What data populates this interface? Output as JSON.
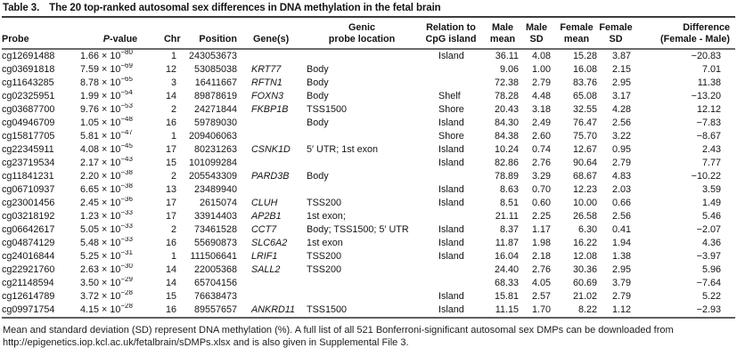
{
  "title": {
    "label": "Table 3.",
    "caption": "The 20 top-ranked autosomal sex differences in DNA methylation in the fetal brain"
  },
  "table": {
    "columns": [
      {
        "key": "probe",
        "label": "Probe"
      },
      {
        "key": "pvalue",
        "label": "P-value"
      },
      {
        "key": "chr",
        "label": "Chr"
      },
      {
        "key": "position",
        "label": "Position"
      },
      {
        "key": "gene",
        "label": "Gene(s)"
      },
      {
        "key": "genic",
        "label": "Genic\nprobe location"
      },
      {
        "key": "relation",
        "label": "Relation to\nCpG island"
      },
      {
        "key": "male_mean",
        "label": "Male\nmean"
      },
      {
        "key": "male_sd",
        "label": "Male\nSD"
      },
      {
        "key": "female_mean",
        "label": "Female\nmean"
      },
      {
        "key": "female_sd",
        "label": "Female\nSD"
      },
      {
        "key": "difference",
        "label": "Difference\n(Female - Male)"
      }
    ],
    "rows": [
      {
        "probe": "cg12691488",
        "p_mantissa": "1.66",
        "p_exponent": "−80",
        "chr": "1",
        "position": "243053673",
        "gene": "",
        "genic": "",
        "relation": "Island",
        "male_mean": "36.11",
        "male_sd": "4.08",
        "female_mean": "15.28",
        "female_sd": "3.87",
        "difference": "−20.83"
      },
      {
        "probe": "cg03691818",
        "p_mantissa": "7.59",
        "p_exponent": "−69",
        "chr": "12",
        "position": "53085038",
        "gene": "KRT77",
        "genic": "Body",
        "relation": "",
        "male_mean": "9.06",
        "male_sd": "1.00",
        "female_mean": "16.08",
        "female_sd": "2.15",
        "difference": "7.01"
      },
      {
        "probe": "cg11643285",
        "p_mantissa": "8.78",
        "p_exponent": "−65",
        "chr": "3",
        "position": "16411667",
        "gene": "RFTN1",
        "genic": "Body",
        "relation": "",
        "male_mean": "72.38",
        "male_sd": "2.79",
        "female_mean": "83.76",
        "female_sd": "2.95",
        "difference": "11.38"
      },
      {
        "probe": "cg02325951",
        "p_mantissa": "1.99",
        "p_exponent": "−54",
        "chr": "14",
        "position": "89878619",
        "gene": "FOXN3",
        "genic": "Body",
        "relation": "Shelf",
        "male_mean": "78.28",
        "male_sd": "4.48",
        "female_mean": "65.08",
        "female_sd": "3.17",
        "difference": "−13.20"
      },
      {
        "probe": "cg03687700",
        "p_mantissa": "9.76",
        "p_exponent": "−53",
        "chr": "2",
        "position": "24271844",
        "gene": "FKBP1B",
        "genic": "TSS1500",
        "relation": "Shore",
        "male_mean": "20.43",
        "male_sd": "3.18",
        "female_mean": "32.55",
        "female_sd": "4.28",
        "difference": "12.12"
      },
      {
        "probe": "cg04946709",
        "p_mantissa": "1.05",
        "p_exponent": "−48",
        "chr": "16",
        "position": "59789030",
        "gene": "",
        "genic": "Body",
        "relation": "Island",
        "male_mean": "84.30",
        "male_sd": "2.49",
        "female_mean": "76.47",
        "female_sd": "2.56",
        "difference": "−7.83"
      },
      {
        "probe": "cg15817705",
        "p_mantissa": "5.81",
        "p_exponent": "−47",
        "chr": "1",
        "position": "209406063",
        "gene": "",
        "genic": "",
        "relation": "Shore",
        "male_mean": "84.38",
        "male_sd": "2.60",
        "female_mean": "75.70",
        "female_sd": "3.22",
        "difference": "−8.67"
      },
      {
        "probe": "cg22345911",
        "p_mantissa": "4.08",
        "p_exponent": "−45",
        "chr": "17",
        "position": "80231263",
        "gene": "CSNK1D",
        "genic": "5′ UTR; 1st exon",
        "relation": "Island",
        "male_mean": "10.24",
        "male_sd": "0.74",
        "female_mean": "12.67",
        "female_sd": "0.95",
        "difference": "2.43"
      },
      {
        "probe": "cg23719534",
        "p_mantissa": "2.17",
        "p_exponent": "−43",
        "chr": "15",
        "position": "101099284",
        "gene": "",
        "genic": "",
        "relation": "Island",
        "male_mean": "82.86",
        "male_sd": "2.76",
        "female_mean": "90.64",
        "female_sd": "2.79",
        "difference": "7.77"
      },
      {
        "probe": "cg11841231",
        "p_mantissa": "2.20",
        "p_exponent": "−38",
        "chr": "2",
        "position": "205543309",
        "gene": "PARD3B",
        "genic": "Body",
        "relation": "",
        "male_mean": "78.89",
        "male_sd": "3.29",
        "female_mean": "68.67",
        "female_sd": "4.83",
        "difference": "−10.22"
      },
      {
        "probe": "cg06710937",
        "p_mantissa": "6.65",
        "p_exponent": "−38",
        "chr": "13",
        "position": "23489940",
        "gene": "",
        "genic": "",
        "relation": "Island",
        "male_mean": "8.63",
        "male_sd": "0.70",
        "female_mean": "12.23",
        "female_sd": "2.03",
        "difference": "3.59"
      },
      {
        "probe": "cg23001456",
        "p_mantissa": "2.45",
        "p_exponent": "−36",
        "chr": "17",
        "position": "2615074",
        "gene": "CLUH",
        "genic": "TSS200",
        "relation": "Island",
        "male_mean": "8.51",
        "male_sd": "0.60",
        "female_mean": "10.00",
        "female_sd": "0.66",
        "difference": "1.49"
      },
      {
        "probe": "cg03218192",
        "p_mantissa": "1.23",
        "p_exponent": "−33",
        "chr": "17",
        "position": "33914403",
        "gene": "AP2B1",
        "genic": "1st exon;",
        "relation": "",
        "male_mean": "21.11",
        "male_sd": "2.25",
        "female_mean": "26.58",
        "female_sd": "2.56",
        "difference": "5.46"
      },
      {
        "probe": "cg06642617",
        "p_mantissa": "5.05",
        "p_exponent": "−33",
        "chr": "2",
        "position": "73461528",
        "gene": "CCT7",
        "genic": "Body; TSS1500; 5′ UTR",
        "relation": "Island",
        "male_mean": "8.37",
        "male_sd": "1.17",
        "female_mean": "6.30",
        "female_sd": "0.41",
        "difference": "−2.07"
      },
      {
        "probe": "cg04874129",
        "p_mantissa": "5.48",
        "p_exponent": "−33",
        "chr": "16",
        "position": "55690873",
        "gene": "SLC6A2",
        "genic": "1st exon",
        "relation": "Island",
        "male_mean": "11.87",
        "male_sd": "1.98",
        "female_mean": "16.22",
        "female_sd": "1.94",
        "difference": "4.36"
      },
      {
        "probe": "cg24016844",
        "p_mantissa": "5.25",
        "p_exponent": "−31",
        "chr": "1",
        "position": "111506641",
        "gene": "LRIF1",
        "genic": "TSS200",
        "relation": "Island",
        "male_mean": "16.04",
        "male_sd": "2.18",
        "female_mean": "12.08",
        "female_sd": "1.38",
        "difference": "−3.97"
      },
      {
        "probe": "cg22921760",
        "p_mantissa": "2.63",
        "p_exponent": "−30",
        "chr": "14",
        "position": "22005368",
        "gene": "SALL2",
        "genic": "TSS200",
        "relation": "",
        "male_mean": "24.40",
        "male_sd": "2.76",
        "female_mean": "30.36",
        "female_sd": "2.95",
        "difference": "5.96"
      },
      {
        "probe": "cg21148594",
        "p_mantissa": "3.50",
        "p_exponent": "−29",
        "chr": "14",
        "position": "65704156",
        "gene": "",
        "genic": "",
        "relation": "",
        "male_mean": "68.33",
        "male_sd": "4.05",
        "female_mean": "60.69",
        "female_sd": "3.79",
        "difference": "−7.64"
      },
      {
        "probe": "cg12614789",
        "p_mantissa": "3.72",
        "p_exponent": "−28",
        "chr": "15",
        "position": "76638473",
        "gene": "",
        "genic": "",
        "relation": "Island",
        "male_mean": "15.81",
        "male_sd": "2.57",
        "female_mean": "21.02",
        "female_sd": "2.79",
        "difference": "5.22"
      },
      {
        "probe": "cg09971754",
        "p_mantissa": "4.15",
        "p_exponent": "−28",
        "chr": "16",
        "position": "89557657",
        "gene": "ANKRD11",
        "genic": "TSS1500",
        "relation": "Island",
        "male_mean": "11.15",
        "male_sd": "1.70",
        "female_mean": "8.22",
        "female_sd": "1.12",
        "difference": "−2.93"
      }
    ]
  },
  "footnote": "Mean and standard deviation (SD) represent DNA methylation (%). A full list of all 521 Bonferroni-significant autosomal sex DMPs can be downloaded from http://epigenetics.iop.kcl.ac.uk/fetalbrain/sDMPs.xlsx and is also given in Supplemental File 3."
}
